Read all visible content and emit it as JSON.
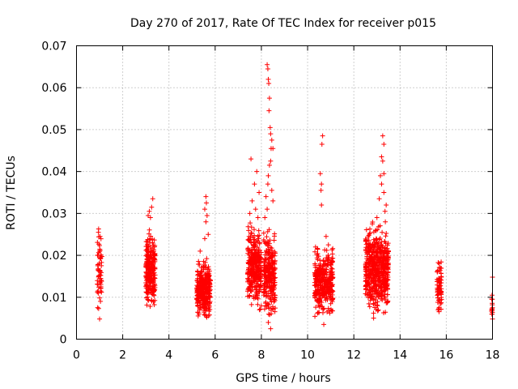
{
  "chart_data": {
    "type": "scatter",
    "title": "Day 270 of 2017, Rate Of TEC Index for receiver p015",
    "xlabel": "GPS time / hours",
    "ylabel": "ROTI / TECUs",
    "xlim": [
      0,
      18
    ],
    "ylim": [
      0,
      0.07
    ],
    "grid": true,
    "x_ticks": [
      0,
      2,
      4,
      6,
      8,
      10,
      12,
      14,
      16,
      18
    ],
    "x_tick_labels": [
      "0",
      "2",
      "4",
      "6",
      "8",
      "10",
      "12",
      "14",
      "16",
      "18"
    ],
    "y_ticks": [
      0,
      0.01,
      0.02,
      0.03,
      0.04,
      0.05,
      0.06,
      0.07
    ],
    "y_tick_labels": [
      "0",
      "0.01",
      "0.02",
      "0.03",
      "0.04",
      "0.05",
      "0.06",
      "0.07"
    ],
    "marker": "+",
    "series_color": "#ff0000",
    "clusters": [
      {
        "name": "near 1h",
        "x_range": [
          0.9,
          1.1
        ],
        "y_base": [
          0.005,
          0.025
        ],
        "count": 60,
        "extra": [
          [
            0.95,
            0.0255
          ],
          [
            1.02,
            0.0245
          ],
          [
            1.0,
            0.0048
          ]
        ]
      },
      {
        "name": "near 3.2h",
        "x_range": [
          3.0,
          3.4
        ],
        "y_base": [
          0.005,
          0.025
        ],
        "count": 260,
        "extra": [
          [
            3.3,
            0.0335
          ],
          [
            3.25,
            0.0315
          ],
          [
            3.15,
            0.0305
          ],
          [
            3.2,
            0.029
          ],
          [
            3.1,
            0.0295
          ]
        ]
      },
      {
        "name": "near 5.5h",
        "x_range": [
          5.2,
          5.8
        ],
        "y_base": [
          0.004,
          0.018
        ],
        "count": 300,
        "extra": [
          [
            5.6,
            0.034
          ],
          [
            5.62,
            0.0325
          ],
          [
            5.55,
            0.031
          ],
          [
            5.65,
            0.0295
          ],
          [
            5.6,
            0.028
          ],
          [
            5.7,
            0.025
          ],
          [
            5.55,
            0.024
          ],
          [
            5.35,
            0.021
          ]
        ]
      },
      {
        "name": "near 7.7h",
        "x_range": [
          7.4,
          8.0
        ],
        "y_base": [
          0.005,
          0.026
        ],
        "count": 320,
        "extra": [
          [
            7.55,
            0.043
          ],
          [
            7.8,
            0.04
          ],
          [
            7.7,
            0.037
          ],
          [
            7.9,
            0.035
          ],
          [
            7.6,
            0.033
          ],
          [
            7.75,
            0.031
          ],
          [
            7.85,
            0.029
          ],
          [
            7.5,
            0.03
          ]
        ]
      },
      {
        "name": "near 8.3h",
        "x_range": [
          8.1,
          8.6
        ],
        "y_base": [
          0.003,
          0.025
        ],
        "count": 260,
        "extra": [
          [
            8.25,
            0.0655
          ],
          [
            8.28,
            0.0645
          ],
          [
            8.3,
            0.062
          ],
          [
            8.32,
            0.061
          ],
          [
            8.35,
            0.0575
          ],
          [
            8.33,
            0.0545
          ],
          [
            8.38,
            0.0505
          ],
          [
            8.4,
            0.049
          ],
          [
            8.45,
            0.0475
          ],
          [
            8.42,
            0.0455
          ],
          [
            8.5,
            0.0455
          ],
          [
            8.4,
            0.0425
          ],
          [
            8.35,
            0.0415
          ],
          [
            8.3,
            0.039
          ],
          [
            8.28,
            0.037
          ],
          [
            8.45,
            0.0355
          ],
          [
            8.2,
            0.034
          ],
          [
            8.5,
            0.033
          ],
          [
            8.25,
            0.031
          ],
          [
            8.15,
            0.029
          ],
          [
            8.4,
            0.0025
          ],
          [
            8.3,
            0.004
          ]
        ]
      },
      {
        "name": "near 10.6h",
        "x_range": [
          10.3,
          11.1
        ],
        "y_base": [
          0.004,
          0.021
        ],
        "count": 340,
        "extra": [
          [
            10.65,
            0.0485
          ],
          [
            10.62,
            0.0465
          ],
          [
            10.55,
            0.0395
          ],
          [
            10.6,
            0.037
          ],
          [
            10.58,
            0.0355
          ],
          [
            10.6,
            0.032
          ],
          [
            10.8,
            0.0245
          ],
          [
            10.9,
            0.0225
          ],
          [
            10.7,
            0.0035
          ]
        ]
      },
      {
        "name": "near 13h",
        "x_range": [
          12.5,
          13.5
        ],
        "y_base": [
          0.004,
          0.026
        ],
        "count": 560,
        "extra": [
          [
            13.25,
            0.0485
          ],
          [
            13.3,
            0.0465
          ],
          [
            13.2,
            0.0435
          ],
          [
            13.25,
            0.0425
          ],
          [
            13.15,
            0.039
          ],
          [
            13.2,
            0.037
          ],
          [
            13.3,
            0.035
          ],
          [
            13.1,
            0.0335
          ],
          [
            13.4,
            0.032
          ],
          [
            13.35,
            0.0305
          ],
          [
            12.8,
            0.0275
          ],
          [
            13.0,
            0.029
          ],
          [
            13.3,
            0.0395
          ]
        ]
      },
      {
        "name": "near 15.7h",
        "x_range": [
          15.6,
          15.8
        ],
        "y_base": [
          0.0045,
          0.018
        ],
        "count": 70,
        "extra": [
          [
            15.7,
            0.018
          ],
          [
            15.75,
            0.017
          ]
        ]
      },
      {
        "name": "near 18h",
        "x_range": [
          17.95,
          18.0
        ],
        "y_base": [
          0.005,
          0.01
        ],
        "count": 10,
        "extra": [
          [
            18.0,
            0.0148
          ],
          [
            17.98,
            0.0105
          ],
          [
            17.99,
            0.0095
          ],
          [
            18.0,
            0.0075
          ],
          [
            17.97,
            0.006
          ],
          [
            18.0,
            0.0048
          ]
        ]
      }
    ]
  }
}
